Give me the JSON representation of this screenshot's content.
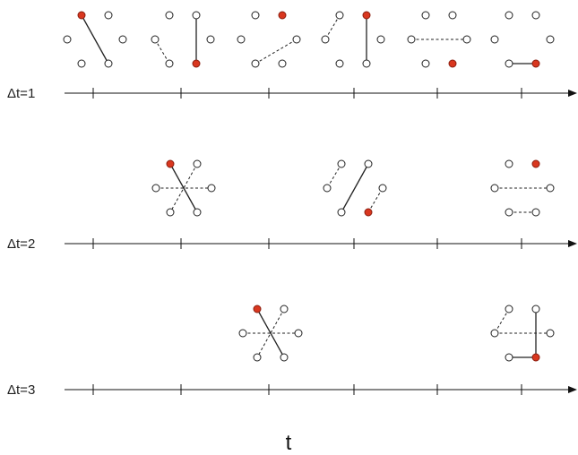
{
  "colors": {
    "active": "#d9371f",
    "stroke": "#222222",
    "background": "#ffffff"
  },
  "axis_label": "t",
  "rows": [
    {
      "label": "Δt=1",
      "panels": [
        {
          "active": 0,
          "solid": [
            [
              0,
              5
            ]
          ],
          "dashed": []
        },
        {
          "active": 5,
          "solid": [
            [
              1,
              5
            ]
          ],
          "dashed": [
            [
              3,
              6
            ]
          ]
        },
        {
          "active": 1,
          "solid": [],
          "dashed": [
            [
              4,
              7
            ]
          ]
        },
        {
          "active": 1,
          "solid": [
            [
              1,
              5
            ]
          ],
          "dashed": [
            [
              0,
              3
            ]
          ]
        },
        {
          "active": 5,
          "solid": [],
          "dashed": [
            [
              3,
              7
            ]
          ]
        },
        {
          "active": 5,
          "solid": [
            [
              4,
              5
            ]
          ],
          "dashed": []
        }
      ]
    },
    {
      "label": "Δt=2",
      "panels": [
        {
          "active": 0,
          "solid": [
            [
              0,
              5
            ]
          ],
          "dashed": [
            [
              1,
              6
            ],
            [
              3,
              7
            ]
          ]
        },
        {
          "active": 5,
          "solid": [
            [
              1,
              4
            ]
          ],
          "dashed": [
            [
              0,
              3
            ],
            [
              5,
              7
            ]
          ]
        },
        {
          "active": 1,
          "solid": [],
          "dashed": [
            [
              3,
              7
            ],
            [
              4,
              5
            ]
          ]
        }
      ]
    },
    {
      "label": "Δt=3",
      "panels": [
        {
          "active": 0,
          "solid": [
            [
              0,
              5
            ]
          ],
          "dashed": [
            [
              1,
              4
            ],
            [
              3,
              7
            ]
          ]
        },
        {
          "active": 5,
          "solid": [
            [
              1,
              5
            ],
            [
              4,
              5
            ]
          ],
          "dashed": [
            [
              0,
              3
            ],
            [
              3,
              7
            ]
          ]
        }
      ]
    }
  ]
}
